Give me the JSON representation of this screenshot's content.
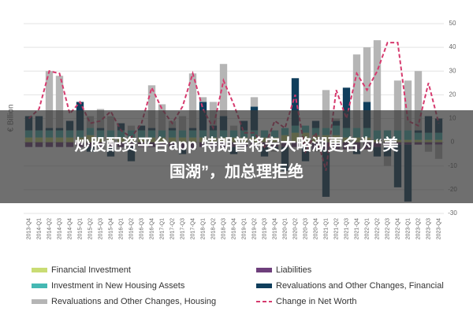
{
  "chart_data": {
    "type": "bar",
    "stacked": true,
    "y_label": "€ Billion",
    "categories": [
      "2013-Q4",
      "2014-Q1",
      "2014-Q2",
      "2014-Q3",
      "2014-Q4",
      "2015-Q1",
      "2015-Q2",
      "2015-Q3",
      "2015-Q4",
      "2016-Q1",
      "2016-Q2",
      "2016-Q3",
      "2016-Q4",
      "2017-Q1",
      "2017-Q2",
      "2017-Q3",
      "2017-Q4",
      "2018-Q1",
      "2018-Q2",
      "2018-Q3",
      "2018-Q4",
      "2019-Q1",
      "2019-Q2",
      "2019-Q3",
      "2019-Q4",
      "2020-Q1",
      "2020-Q2",
      "2020-Q3",
      "2020-Q4",
      "2021-Q1",
      "2021-Q2",
      "2021-Q3",
      "2021-Q4",
      "2022-Q1",
      "2022-Q2",
      "2022-Q3",
      "2022-Q4",
      "2023-Q1",
      "2023-Q2",
      "2023-Q3",
      "2023-Q4"
    ],
    "series": [
      {
        "name": "Financial Investment",
        "color": "#c9dc74",
        "values": [
          2,
          2,
          2,
          2,
          2,
          2,
          3,
          2,
          2,
          2,
          2,
          2,
          2,
          2,
          2,
          2,
          2,
          2,
          2,
          2,
          2,
          2,
          2,
          2,
          2,
          3,
          4,
          4,
          3,
          3,
          3,
          2,
          2,
          2,
          1,
          1,
          1,
          1,
          1,
          1,
          1
        ]
      },
      {
        "name": "Liabilities",
        "color": "#6e3f7c",
        "values": [
          -2,
          -2,
          -2,
          -2,
          -2,
          -2,
          -2,
          -2,
          -2,
          -2,
          -2,
          -2,
          -2,
          -2,
          -2,
          -3,
          -3,
          -2,
          -2,
          -2,
          -2,
          -2,
          -2,
          -2,
          -2,
          -2,
          -2,
          -2,
          -3,
          -3,
          -3,
          -3,
          -3,
          -3,
          -2,
          -2,
          -1,
          -1,
          -1,
          -1,
          -1
        ]
      },
      {
        "name": "Investment in New Housing Assets",
        "color": "#45b8b3",
        "values": [
          3,
          3,
          3,
          3,
          3,
          3,
          3,
          3,
          3,
          3,
          3,
          3,
          3,
          3,
          3,
          3,
          3,
          3,
          3,
          3,
          3,
          3,
          3,
          3,
          3,
          3,
          3,
          3,
          3,
          3,
          4,
          4,
          4,
          4,
          4,
          4,
          4,
          4,
          3,
          3,
          3
        ]
      },
      {
        "name": "Revaluations and Other Changes, Financial",
        "color": "#0f3e5c",
        "values": [
          6,
          6,
          1,
          1,
          4,
          12,
          -2,
          1,
          -4,
          3,
          -6,
          2,
          1,
          0,
          1,
          -2,
          1,
          12,
          2,
          6,
          -3,
          4,
          10,
          -4,
          -1,
          -10,
          20,
          -6,
          3,
          -20,
          2,
          17,
          -2,
          11,
          -4,
          -4,
          -18,
          -24,
          1,
          7,
          6
        ]
      },
      {
        "name": "Revaluations and Other Changes, Housing",
        "color": "#b5b5b5",
        "values": [
          0,
          0,
          24,
          22,
          0,
          0,
          5,
          8,
          6,
          0,
          2,
          0,
          18,
          11,
          3,
          6,
          23,
          2,
          10,
          22,
          2,
          0,
          4,
          0,
          -1,
          0,
          0,
          0,
          -1,
          16,
          1,
          0,
          31,
          23,
          38,
          -4,
          21,
          21,
          25,
          -3,
          -6
        ]
      },
      {
        "name": "Change in Net Worth",
        "color": "#d63a6e",
        "type": "line",
        "dashed": true,
        "values": [
          10,
          14,
          30,
          29,
          12,
          17,
          8,
          9,
          13,
          5,
          2,
          8,
          23,
          14,
          8,
          15,
          29,
          14,
          6,
          26,
          16,
          4,
          4,
          -2,
          9,
          6,
          20,
          -4,
          4,
          -12,
          22,
          10,
          29,
          22,
          30,
          42,
          42,
          9,
          7,
          25,
          8
        ]
      }
    ],
    "ylim": [
      -30,
      50
    ],
    "yticks": [
      -30,
      -20,
      -10,
      0,
      10,
      20,
      30,
      40,
      50
    ],
    "grid": true
  },
  "overlay": {
    "lines": [
      "炒股配资平台app 特朗普将安大略湖更名为“美",
      "国湖”，加总理拒绝"
    ]
  }
}
